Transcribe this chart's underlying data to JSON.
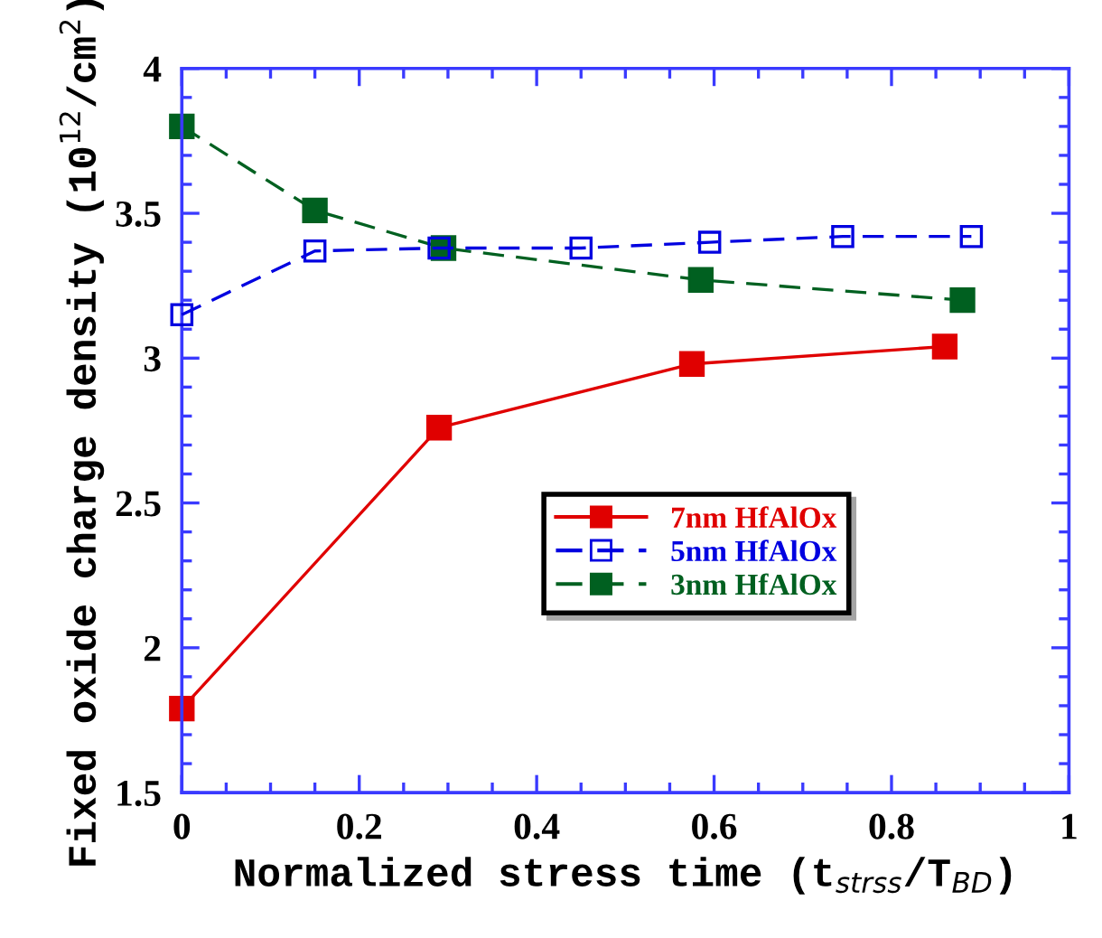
{
  "chart_data": {
    "type": "line",
    "xlabel": "Normalized stress time (t$_{strss}$/T$_{BD}$)",
    "ylabel": "Fixed oxide charge density (10$^{12}$/cm$^{2}$)",
    "xlim": [
      0,
      1
    ],
    "ylim": [
      1.5,
      4
    ],
    "xticks": [
      0,
      0.2,
      0.4,
      0.6,
      0.8,
      1
    ],
    "yticks": [
      1.5,
      2,
      2.5,
      3,
      3.5,
      4
    ],
    "grid": false,
    "legend": "center",
    "marker": "square",
    "series": [
      {
        "name": "7nm HfAlOx",
        "color": "#e00000",
        "line_style": "solid",
        "x": [
          0,
          0.29,
          0.575,
          0.86
        ],
        "values": [
          1.79,
          2.76,
          2.98,
          3.04
        ]
      },
      {
        "name": "5nm HfAlOx",
        "color": "#0000e0",
        "line_style": "dashed",
        "x": [
          0,
          0.15,
          0.29,
          0.45,
          0.595,
          0.745,
          0.89
        ],
        "values": [
          3.15,
          3.37,
          3.38,
          3.38,
          3.4,
          3.42,
          3.42
        ]
      },
      {
        "name": "3nm HfAlOx",
        "color": "#006020",
        "line_style": "dashed",
        "x": [
          0,
          0.15,
          0.295,
          0.585,
          0.88
        ],
        "values": [
          3.8,
          3.51,
          3.38,
          3.27,
          3.2
        ]
      }
    ]
  }
}
